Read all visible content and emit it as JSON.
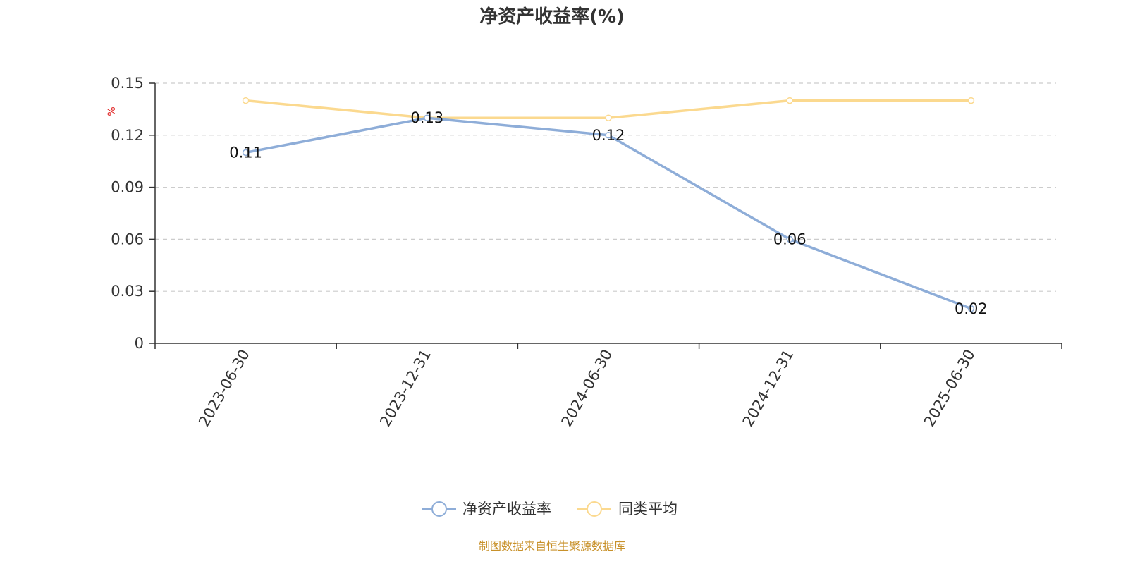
{
  "chart_data": {
    "type": "line",
    "title": "净资产收益率(%)",
    "ylabel": "%",
    "xlabel": "",
    "categories": [
      "2023-06-30",
      "2023-12-31",
      "2024-06-30",
      "2024-12-31",
      "2025-06-30"
    ],
    "ylim": [
      0,
      0.15
    ],
    "yticks": [
      "0",
      "0.03",
      "0.06",
      "0.09",
      "0.12",
      "0.15"
    ],
    "grid": true,
    "legend_position": "bottom-center",
    "series": [
      {
        "name": "净资产收益率",
        "values": [
          0.11,
          0.13,
          0.12,
          0.06,
          0.02
        ],
        "labels": [
          "0.11",
          "0.13",
          "0.12",
          "0.06",
          "0.02"
        ],
        "color": "#8eadd8"
      },
      {
        "name": "同类平均",
        "values": [
          0.14,
          0.13,
          0.13,
          0.14,
          0.14
        ],
        "color": "#fbd98f"
      }
    ]
  },
  "footer": {
    "source": "制图数据来自恒生聚源数据库"
  }
}
